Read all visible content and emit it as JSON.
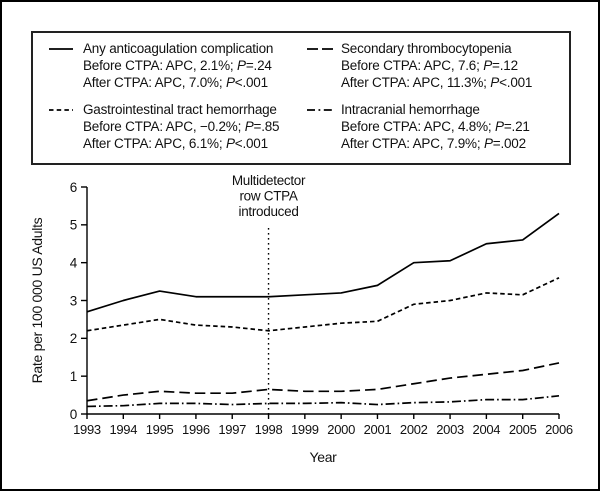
{
  "figure": {
    "background": "#ffffff",
    "frame_color": "#000000",
    "line_color": "#000000",
    "text_color": "#111111"
  },
  "legend": {
    "columns": [
      {
        "items": [
          {
            "line_style": "solid",
            "title": "Any anticoagulation complication",
            "line1": {
              "pre": "Before CTPA: APC, 2.1%; ",
              "p": "P",
              "post": "=.24"
            },
            "line2": {
              "pre": "After CTPA: APC, 7.0%; ",
              "p": "P",
              "post": "<.001"
            }
          },
          {
            "line_style": "short-dash",
            "title": "Gastrointestinal tract hemorrhage",
            "line1": {
              "pre": "Before CTPA: APC, −0.2%; ",
              "p": "P",
              "post": "=.85"
            },
            "line2": {
              "pre": "After CTPA: APC, 6.1%; ",
              "p": "P",
              "post": "<.001"
            }
          }
        ]
      },
      {
        "items": [
          {
            "line_style": "long-dash",
            "title": "Secondary thrombocytopenia",
            "line1": {
              "pre": "Before CTPA: APC, 7.6; ",
              "p": "P",
              "post": "=.12"
            },
            "line2": {
              "pre": "After CTPA: APC, 11.3%; ",
              "p": "P",
              "post": "<.001"
            }
          },
          {
            "line_style": "dash-dot",
            "title": "Intracranial hemorrhage",
            "line1": {
              "pre": "Before CTPA: APC, 4.8%; ",
              "p": "P",
              "post": "=.21"
            },
            "line2": {
              "pre": "After CTPA: APC, 7.9%; ",
              "p": "P",
              "post": "=.002"
            }
          }
        ]
      }
    ]
  },
  "chart_data": {
    "type": "line",
    "title": "",
    "xlabel": "Year",
    "ylabel": "Rate per 100 000 US Adults",
    "x": [
      1993,
      1994,
      1995,
      1996,
      1997,
      1998,
      1999,
      2000,
      2001,
      2002,
      2003,
      2004,
      2005,
      2006
    ],
    "ylim": [
      0,
      6
    ],
    "yticks": [
      0,
      1,
      2,
      3,
      4,
      5,
      6
    ],
    "grid": false,
    "legend_position": "top-box",
    "series": [
      {
        "name": "Any anticoagulation complication",
        "line_style": "solid",
        "values": [
          2.7,
          3.0,
          3.25,
          3.1,
          3.1,
          3.1,
          3.15,
          3.2,
          3.4,
          4.0,
          4.05,
          4.5,
          4.6,
          5.3
        ]
      },
      {
        "name": "Gastrointestinal tract hemorrhage",
        "line_style": "short-dash",
        "values": [
          2.2,
          2.35,
          2.5,
          2.35,
          2.3,
          2.2,
          2.3,
          2.4,
          2.45,
          2.9,
          3.0,
          3.2,
          3.15,
          3.6
        ]
      },
      {
        "name": "Secondary thrombocytopenia",
        "line_style": "long-dash",
        "values": [
          0.35,
          0.5,
          0.6,
          0.55,
          0.55,
          0.65,
          0.6,
          0.6,
          0.65,
          0.8,
          0.95,
          1.05,
          1.15,
          1.35
        ]
      },
      {
        "name": "Intracranial hemorrhage",
        "line_style": "dash-dot",
        "values": [
          0.2,
          0.22,
          0.28,
          0.28,
          0.25,
          0.28,
          0.28,
          0.3,
          0.25,
          0.3,
          0.32,
          0.38,
          0.38,
          0.48
        ]
      }
    ],
    "annotation": {
      "text_lines": [
        "Multidetector",
        "row CTPA",
        "introduced"
      ],
      "x": 1998,
      "line_style": "dotted"
    }
  }
}
